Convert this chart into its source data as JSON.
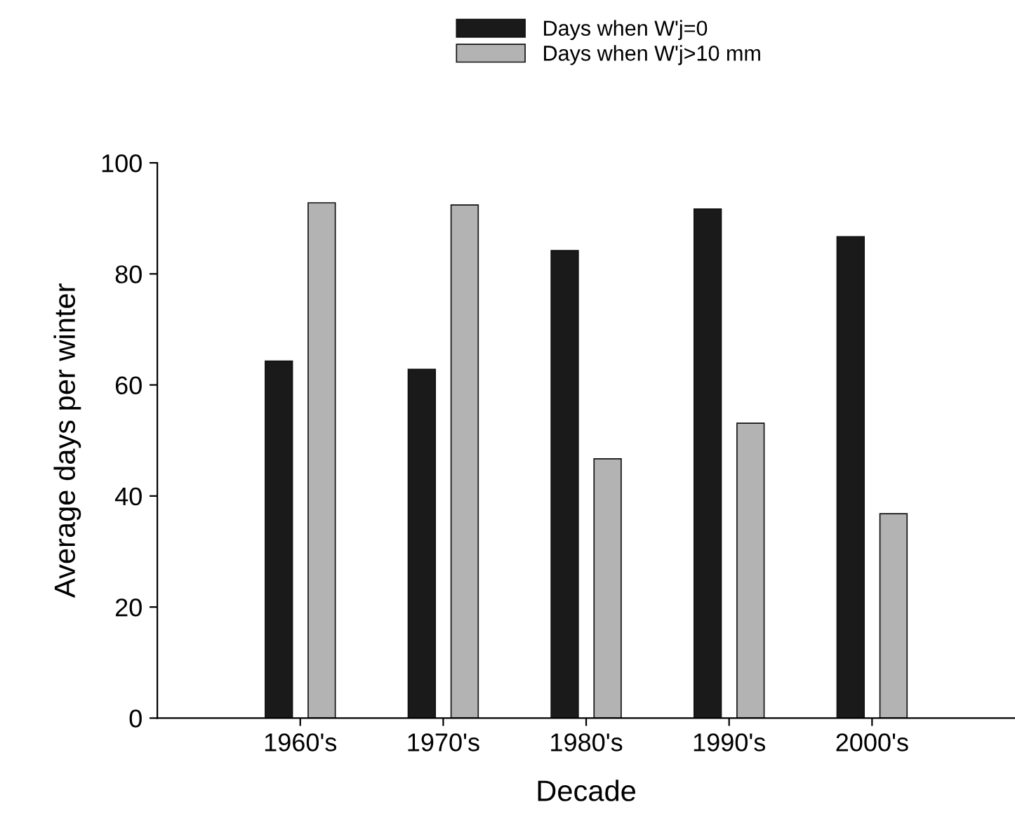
{
  "chart_data": {
    "type": "bar",
    "xlabel": "Decade",
    "ylabel": "Average days per winter",
    "categories": [
      "1960's",
      "1970's",
      "1980's",
      "1990's",
      "2000's"
    ],
    "series": [
      {
        "name": "Days when W'j=0",
        "color": "#1a1a1a",
        "values": [
          64.3,
          62.8,
          84.2,
          91.7,
          86.7
        ]
      },
      {
        "name": "Days when W'j>10 mm",
        "color": "#b3b3b3",
        "values": [
          92.8,
          92.4,
          46.7,
          53.1,
          36.8
        ]
      }
    ],
    "ylim": [
      0,
      100
    ],
    "yticks": [
      0,
      20,
      40,
      60,
      80,
      100
    ],
    "grid": false,
    "legend": "top"
  }
}
